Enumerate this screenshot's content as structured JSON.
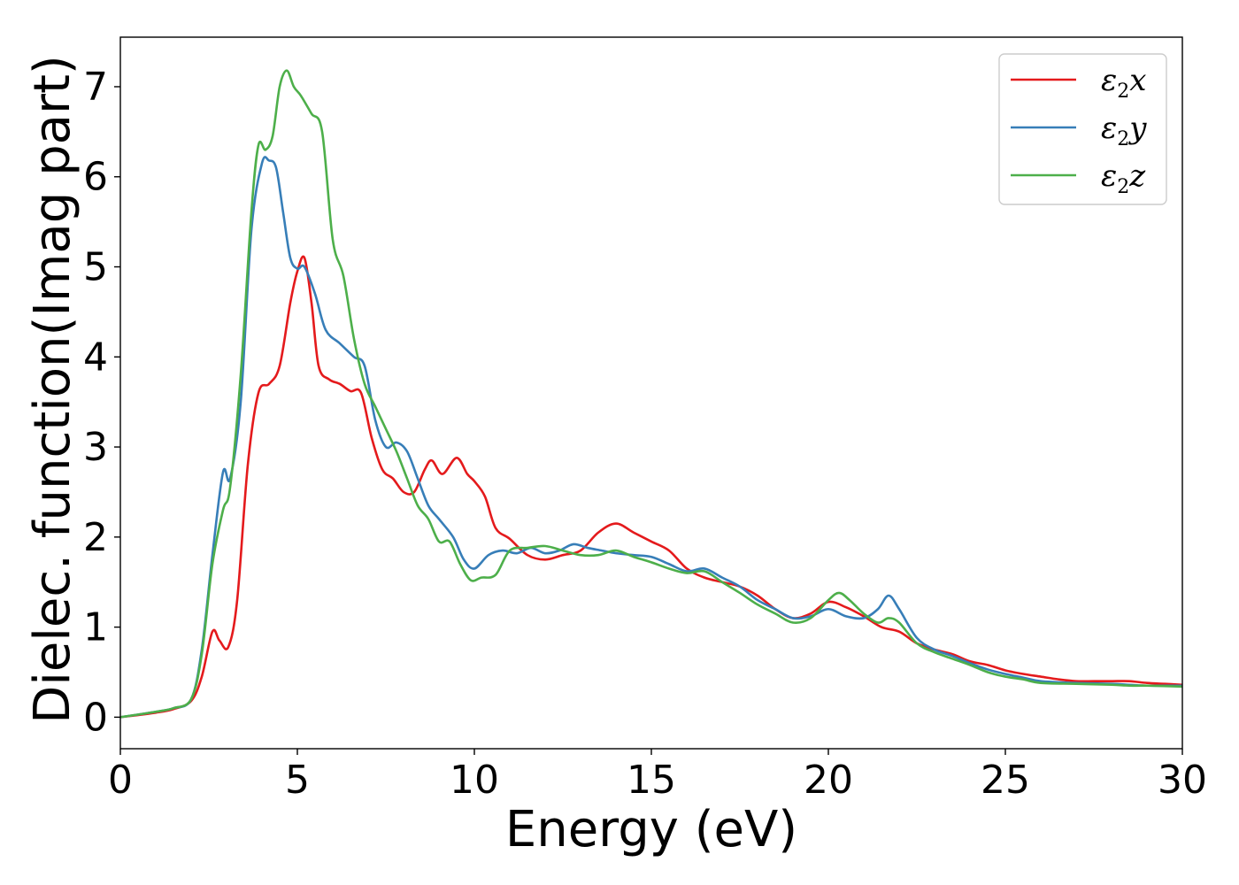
{
  "chart_data": {
    "type": "line",
    "xlabel": "Energy (eV)",
    "ylabel": "Dielec. function(Imag part)",
    "xlim": [
      0,
      30
    ],
    "ylim": [
      -0.35,
      7.55
    ],
    "xticks": [
      0,
      5,
      10,
      15,
      20,
      25,
      30
    ],
    "yticks": [
      0,
      1,
      2,
      3,
      4,
      5,
      6,
      7
    ],
    "grid": false,
    "legend_position": "top-right",
    "series": [
      {
        "name": "ε2x",
        "symbol": "ε",
        "subscript": "2",
        "suffix": "x",
        "color": "#e41a1c",
        "x": [
          0,
          1,
          1.5,
          2.0,
          2.3,
          2.6,
          2.8,
          3.05,
          3.3,
          3.6,
          3.9,
          4.2,
          4.5,
          4.8,
          5.0,
          5.2,
          5.4,
          5.6,
          5.9,
          6.2,
          6.5,
          6.8,
          7.1,
          7.4,
          7.7,
          8.0,
          8.3,
          8.6,
          8.8,
          9.1,
          9.5,
          9.8,
          10.0,
          10.3,
          10.6,
          11.0,
          11.5,
          12.0,
          12.5,
          13.0,
          13.5,
          14.0,
          14.5,
          15.0,
          15.5,
          16.0,
          16.5,
          17.0,
          17.5,
          18.0,
          18.5,
          19.0,
          19.5,
          20.0,
          20.5,
          21.0,
          21.5,
          22.0,
          22.5,
          23.0,
          23.5,
          24.0,
          24.5,
          25.0,
          25.5,
          26.0,
          26.5,
          27.0,
          27.5,
          28.0,
          28.5,
          29.0,
          29.5,
          30.0
        ],
        "values": [
          0.0,
          0.05,
          0.09,
          0.18,
          0.45,
          0.95,
          0.85,
          0.78,
          1.3,
          2.8,
          3.6,
          3.7,
          3.9,
          4.6,
          4.95,
          5.1,
          4.6,
          3.9,
          3.75,
          3.7,
          3.62,
          3.6,
          3.1,
          2.75,
          2.65,
          2.5,
          2.5,
          2.75,
          2.85,
          2.7,
          2.88,
          2.7,
          2.62,
          2.45,
          2.1,
          1.98,
          1.8,
          1.75,
          1.8,
          1.85,
          2.05,
          2.15,
          2.05,
          1.95,
          1.85,
          1.65,
          1.55,
          1.5,
          1.45,
          1.35,
          1.2,
          1.1,
          1.15,
          1.28,
          1.22,
          1.12,
          1.0,
          0.95,
          0.82,
          0.75,
          0.7,
          0.62,
          0.58,
          0.52,
          0.48,
          0.45,
          0.42,
          0.4,
          0.4,
          0.4,
          0.4,
          0.38,
          0.37,
          0.36
        ]
      },
      {
        "name": "ε2y",
        "symbol": "ε",
        "subscript": "2",
        "suffix": "y",
        "color": "#377eb8",
        "x": [
          0,
          1,
          1.5,
          2.0,
          2.3,
          2.6,
          2.9,
          3.1,
          3.4,
          3.7,
          4.0,
          4.2,
          4.4,
          4.6,
          4.8,
          5.0,
          5.2,
          5.5,
          5.8,
          6.2,
          6.6,
          6.9,
          7.2,
          7.5,
          7.8,
          8.1,
          8.4,
          8.7,
          9.0,
          9.4,
          9.7,
          10.0,
          10.4,
          10.8,
          11.2,
          11.6,
          12.0,
          12.4,
          12.8,
          13.2,
          13.6,
          14.0,
          14.5,
          15.0,
          15.5,
          16.0,
          16.5,
          17.0,
          17.5,
          18.0,
          18.5,
          19.0,
          19.5,
          20.0,
          20.5,
          21.0,
          21.4,
          21.7,
          22.0,
          22.5,
          23.0,
          23.5,
          24.0,
          24.5,
          25.0,
          25.5,
          26.0,
          27.0,
          28.0,
          28.5,
          29.0,
          30.0
        ],
        "values": [
          0.0,
          0.06,
          0.1,
          0.2,
          0.75,
          1.8,
          2.72,
          2.65,
          3.5,
          5.4,
          6.15,
          6.18,
          6.1,
          5.6,
          5.1,
          4.98,
          5.0,
          4.7,
          4.3,
          4.15,
          4.0,
          3.9,
          3.3,
          3.0,
          3.05,
          2.95,
          2.65,
          2.35,
          2.2,
          2.0,
          1.75,
          1.65,
          1.8,
          1.85,
          1.82,
          1.88,
          1.82,
          1.85,
          1.92,
          1.88,
          1.85,
          1.82,
          1.8,
          1.78,
          1.7,
          1.62,
          1.65,
          1.55,
          1.45,
          1.3,
          1.2,
          1.1,
          1.12,
          1.2,
          1.12,
          1.1,
          1.2,
          1.35,
          1.2,
          0.88,
          0.75,
          0.68,
          0.6,
          0.53,
          0.48,
          0.44,
          0.4,
          0.38,
          0.37,
          0.36,
          0.35,
          0.35
        ]
      },
      {
        "name": "ε2z",
        "symbol": "ε",
        "subscript": "2",
        "suffix": "z",
        "color": "#4daf4a",
        "x": [
          0,
          1,
          1.5,
          2.0,
          2.3,
          2.6,
          2.9,
          3.1,
          3.4,
          3.7,
          3.9,
          4.1,
          4.3,
          4.5,
          4.7,
          4.9,
          5.1,
          5.4,
          5.7,
          6.0,
          6.3,
          6.6,
          6.9,
          7.2,
          7.5,
          7.8,
          8.1,
          8.4,
          8.7,
          9.0,
          9.3,
          9.6,
          9.9,
          10.2,
          10.6,
          11.0,
          11.5,
          12.0,
          12.5,
          13.0,
          13.5,
          14.0,
          14.5,
          15.0,
          15.5,
          16.0,
          16.5,
          17.0,
          17.5,
          18.0,
          18.5,
          19.0,
          19.5,
          20.0,
          20.3,
          20.6,
          21.0,
          21.4,
          21.7,
          22.0,
          22.5,
          23.0,
          23.5,
          24.0,
          24.5,
          25.0,
          25.5,
          26.0,
          27.0,
          28.0,
          28.5,
          29.0,
          30.0
        ],
        "values": [
          0.0,
          0.06,
          0.1,
          0.2,
          0.7,
          1.7,
          2.3,
          2.55,
          3.8,
          5.6,
          6.35,
          6.3,
          6.45,
          7.0,
          7.18,
          7.0,
          6.9,
          6.7,
          6.5,
          5.3,
          4.9,
          4.2,
          3.7,
          3.45,
          3.2,
          2.95,
          2.65,
          2.35,
          2.2,
          1.95,
          1.95,
          1.7,
          1.52,
          1.55,
          1.58,
          1.85,
          1.88,
          1.9,
          1.85,
          1.8,
          1.8,
          1.85,
          1.78,
          1.72,
          1.65,
          1.6,
          1.62,
          1.5,
          1.38,
          1.25,
          1.15,
          1.05,
          1.1,
          1.3,
          1.38,
          1.3,
          1.15,
          1.05,
          1.1,
          1.05,
          0.82,
          0.72,
          0.65,
          0.58,
          0.5,
          0.45,
          0.42,
          0.38,
          0.37,
          0.36,
          0.35,
          0.35,
          0.34
        ]
      }
    ]
  }
}
